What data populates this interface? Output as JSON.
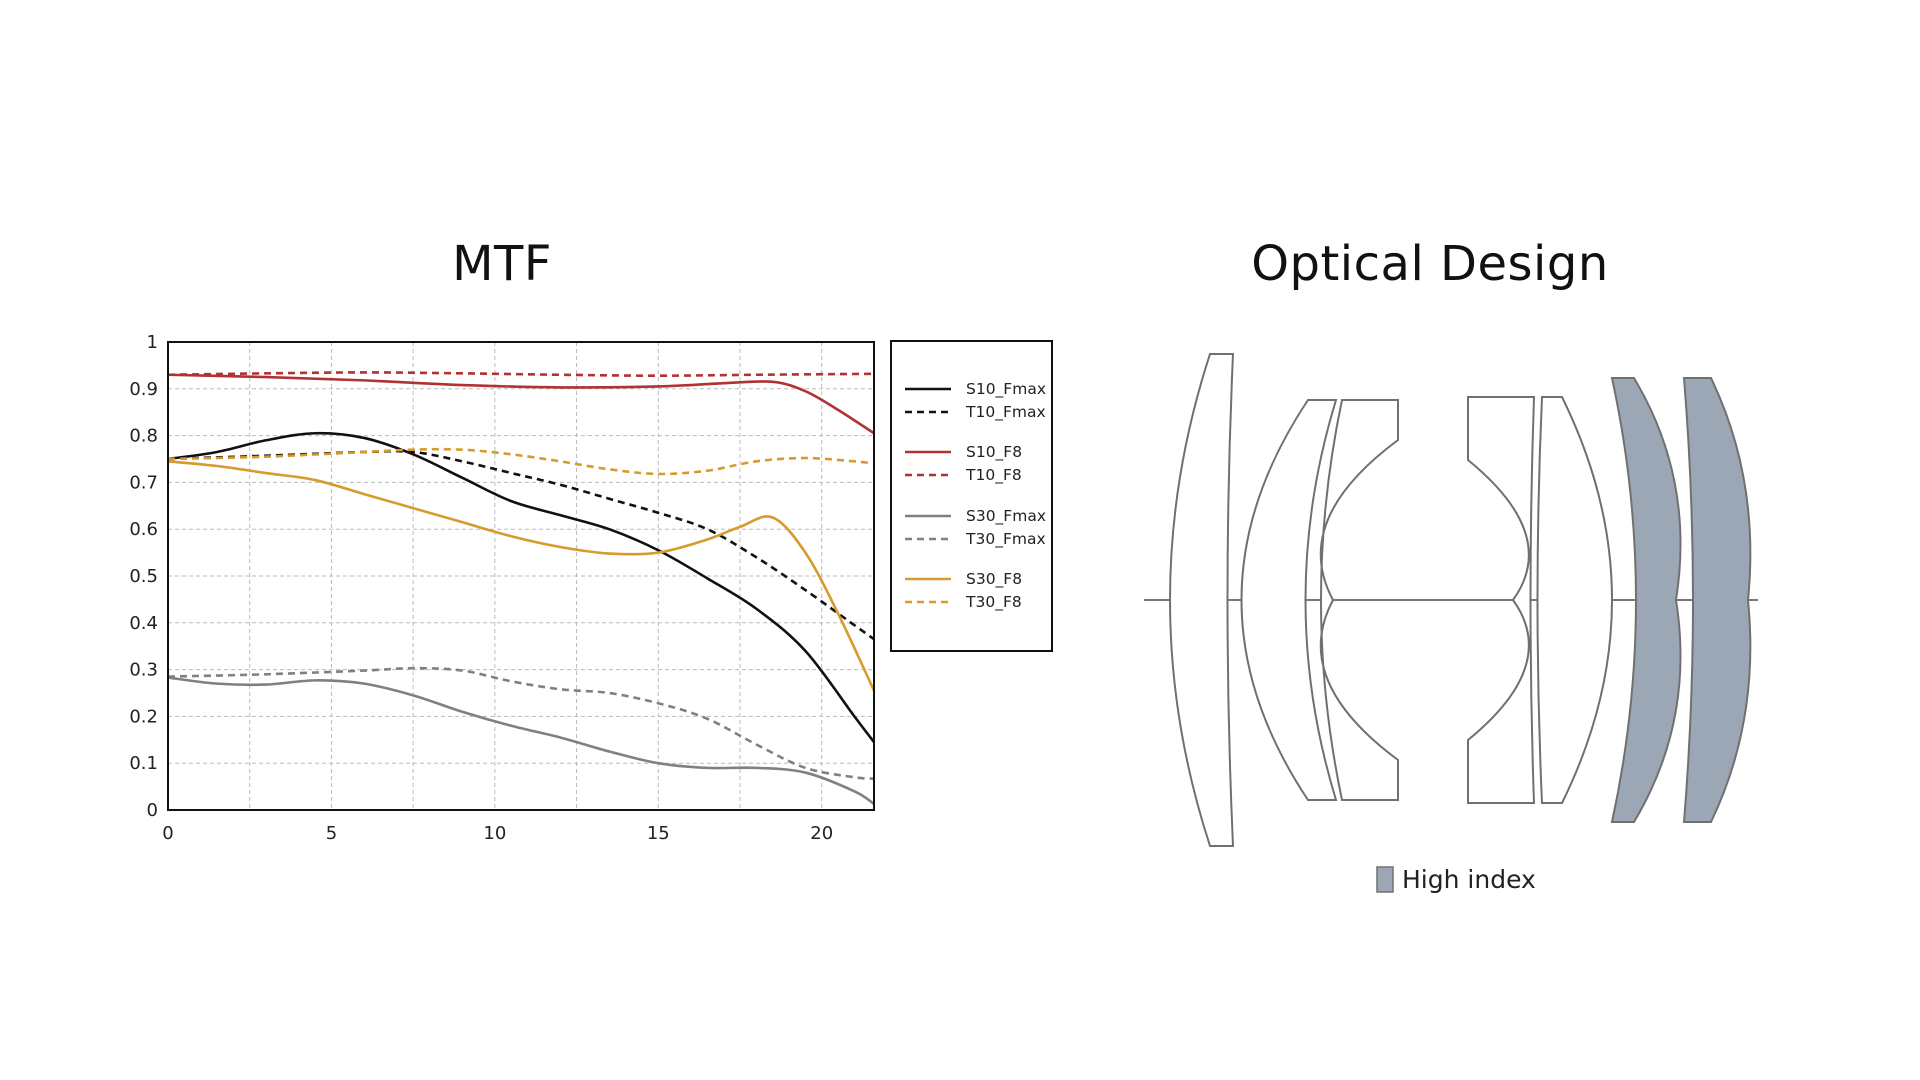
{
  "titles": {
    "mtf": "MTF",
    "optical": "Optical Design"
  },
  "chart_data": {
    "type": "line",
    "title": "MTF",
    "xlabel": "",
    "ylabel": "",
    "xlim": [
      0,
      21.6
    ],
    "ylim": [
      0,
      1
    ],
    "x_ticks": [
      "0",
      "5",
      "10",
      "15",
      "20"
    ],
    "y_ticks": [
      "0",
      "0.1",
      "0.2",
      "0.3",
      "0.4",
      "0.5",
      "0.6",
      "0.7",
      "0.8",
      "0.9",
      "1"
    ],
    "grid": true,
    "legend_position": "right",
    "series": [
      {
        "name": "S10_Fmax",
        "color": "#111111",
        "dash": false,
        "x": [
          0,
          1.5,
          3,
          4.5,
          6,
          7.5,
          9,
          10.5,
          12,
          13.5,
          15,
          16.5,
          18,
          19.5,
          21,
          21.6
        ],
        "y": [
          0.75,
          0.765,
          0.79,
          0.805,
          0.795,
          0.76,
          0.71,
          0.66,
          0.63,
          0.6,
          0.555,
          0.495,
          0.43,
          0.34,
          0.2,
          0.145
        ]
      },
      {
        "name": "T10_Fmax",
        "color": "#111111",
        "dash": true,
        "x": [
          0,
          3,
          6,
          7.5,
          9,
          10.5,
          12,
          13.5,
          15,
          16.5,
          18,
          19.5,
          21,
          21.6
        ],
        "y": [
          0.75,
          0.757,
          0.765,
          0.765,
          0.745,
          0.72,
          0.695,
          0.665,
          0.635,
          0.6,
          0.54,
          0.47,
          0.395,
          0.365
        ]
      },
      {
        "name": "S10_F8",
        "color": "#b03232",
        "dash": false,
        "x": [
          0,
          3,
          6,
          9,
          12,
          15,
          17,
          18.5,
          19.5,
          20.5,
          21.6
        ],
        "y": [
          0.93,
          0.925,
          0.918,
          0.908,
          0.903,
          0.905,
          0.912,
          0.915,
          0.895,
          0.855,
          0.805
        ]
      },
      {
        "name": "T10_F8",
        "color": "#b03232",
        "dash": true,
        "x": [
          0,
          3,
          6,
          9,
          12,
          15,
          18,
          21.6
        ],
        "y": [
          0.93,
          0.933,
          0.935,
          0.933,
          0.93,
          0.928,
          0.93,
          0.932
        ]
      },
      {
        "name": "S30_Fmax",
        "color": "#808080",
        "dash": false,
        "x": [
          0,
          1.5,
          3,
          4.5,
          6,
          7.5,
          9,
          10.5,
          12,
          13.5,
          15,
          16.5,
          18,
          19.5,
          21,
          21.6
        ],
        "y": [
          0.283,
          0.27,
          0.268,
          0.277,
          0.27,
          0.245,
          0.21,
          0.18,
          0.155,
          0.125,
          0.1,
          0.09,
          0.09,
          0.08,
          0.04,
          0.013
        ]
      },
      {
        "name": "T30_Fmax",
        "color": "#808080",
        "dash": true,
        "x": [
          0,
          3,
          6,
          7.5,
          9,
          10.5,
          12,
          13.5,
          15,
          16.5,
          18,
          19.5,
          21,
          21.6
        ],
        "y": [
          0.285,
          0.29,
          0.298,
          0.303,
          0.298,
          0.275,
          0.258,
          0.25,
          0.228,
          0.195,
          0.14,
          0.09,
          0.07,
          0.067
        ]
      },
      {
        "name": "S30_F8",
        "color": "#d69a2d",
        "dash": false,
        "x": [
          0,
          1.5,
          3,
          4.5,
          6,
          7.5,
          9,
          10.5,
          12,
          13.5,
          15,
          16.5,
          17.5,
          18.5,
          19.5,
          20.5,
          21.6
        ],
        "y": [
          0.745,
          0.735,
          0.72,
          0.705,
          0.675,
          0.645,
          0.615,
          0.585,
          0.562,
          0.548,
          0.55,
          0.578,
          0.605,
          0.625,
          0.55,
          0.42,
          0.255
        ]
      },
      {
        "name": "T30_F8",
        "color": "#d69a2d",
        "dash": true,
        "x": [
          0,
          3,
          6,
          7.5,
          9,
          10.5,
          12,
          13.5,
          15,
          16.5,
          18,
          19.5,
          21,
          21.6
        ],
        "y": [
          0.75,
          0.755,
          0.765,
          0.77,
          0.77,
          0.76,
          0.745,
          0.728,
          0.718,
          0.725,
          0.745,
          0.752,
          0.745,
          0.74
        ]
      }
    ]
  },
  "optical_design": {
    "high_index_color": "#9ca7b6",
    "outline_color": "#707070",
    "legend_label": "High index"
  }
}
